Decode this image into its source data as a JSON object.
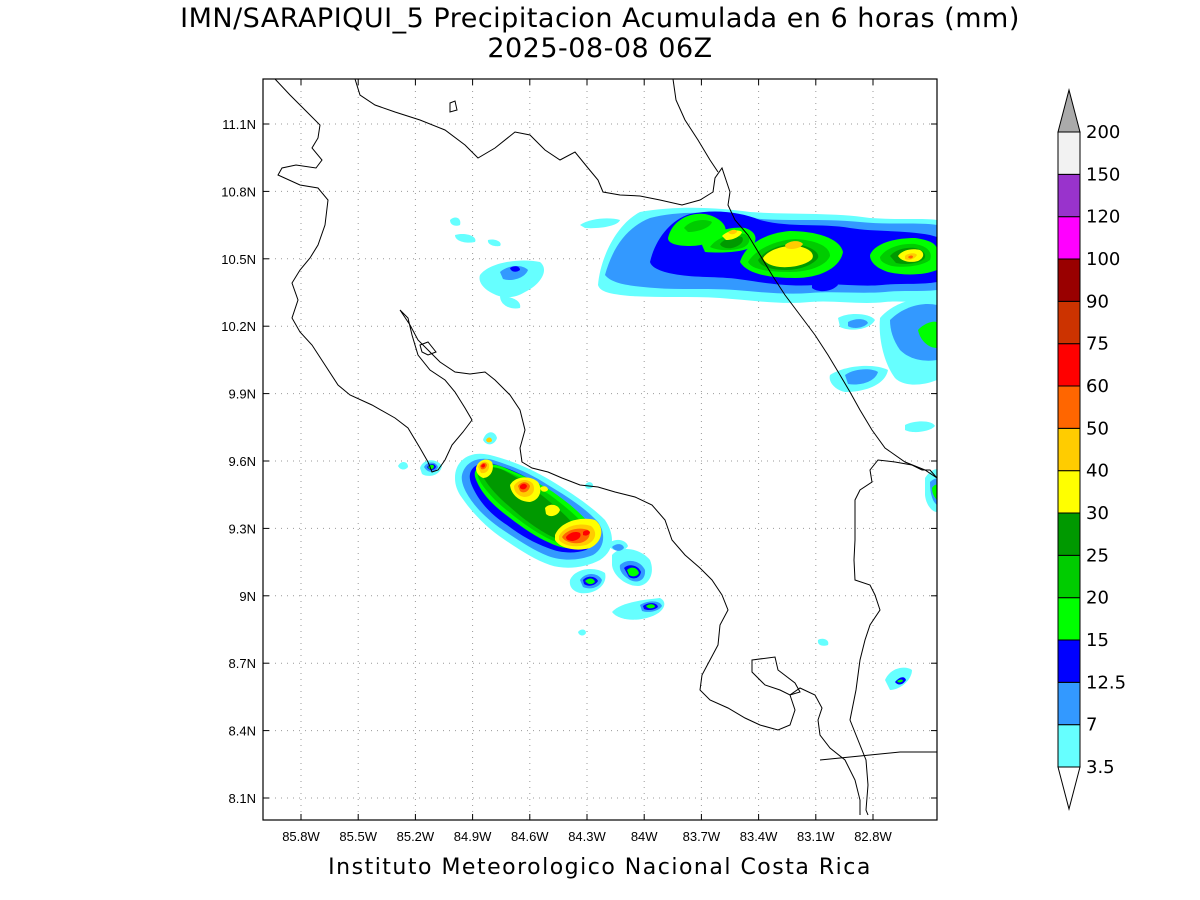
{
  "title": {
    "line1": "IMN/SARAPIQUI_5 Precipitacion Acumulada en 6 horas (mm)",
    "line2": "2025-08-08 06Z"
  },
  "footer": "Instituto Meteorologico Nacional Costa Rica",
  "axes": {
    "lon_labels": [
      "85.8W",
      "85.5W",
      "85.2W",
      "84.9W",
      "84.6W",
      "84.3W",
      "84W",
      "83.7W",
      "83.4W",
      "83.1W",
      "82.8W"
    ],
    "lat_labels": [
      "11.1N",
      "10.8N",
      "10.5N",
      "10.2N",
      "9.9N",
      "9.6N",
      "9.3N",
      "9N",
      "8.7N",
      "8.4N",
      "8.1N"
    ],
    "grid": "dotted"
  },
  "colorbar": {
    "levels": [
      "3.5",
      "7",
      "12.5",
      "15",
      "20",
      "25",
      "30",
      "40",
      "50",
      "60",
      "75",
      "90",
      "100",
      "120",
      "150",
      "200"
    ],
    "colors": [
      "#ffffff",
      "#66ffff",
      "#3399ff",
      "#0000ff",
      "#00ff00",
      "#00cc00",
      "#009900",
      "#ffff00",
      "#ffcc00",
      "#ff6600",
      "#ff0000",
      "#cc3300",
      "#990000",
      "#ff00ff",
      "#9933cc",
      "#f2f2f2",
      "#aaaaaa"
    ]
  }
}
